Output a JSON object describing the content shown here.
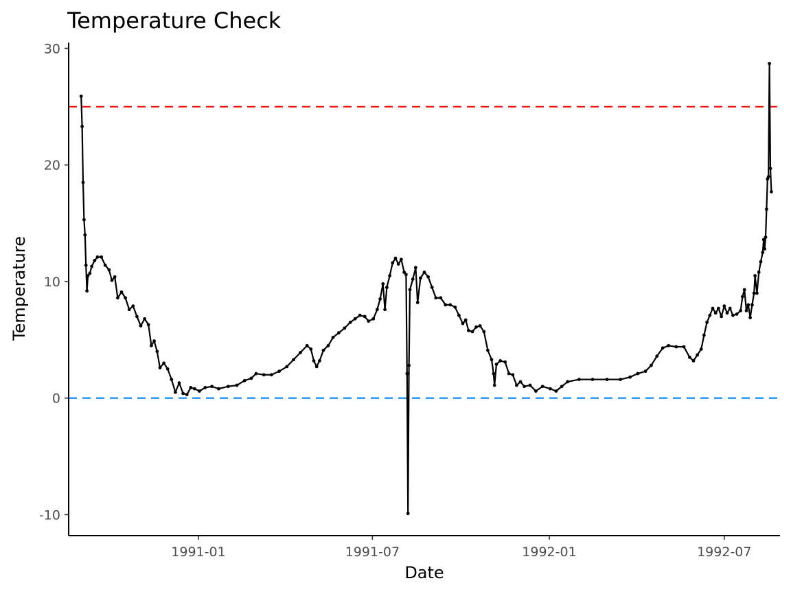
{
  "chart_data": {
    "type": "line",
    "title": "Temperature Check",
    "xlabel": "Date",
    "ylabel": "Temperature",
    "xlim": [
      "1990-08-19",
      "1992-08-28"
    ],
    "ylim": [
      -11.8,
      30.5
    ],
    "x_ticks": [
      "1991-01-01",
      "1991-07-01",
      "1992-01-01",
      "1992-07-01"
    ],
    "x_tick_labels": [
      "1991-01",
      "1991-07",
      "1992-01",
      "1992-07"
    ],
    "y_ticks": [
      -10,
      0,
      10,
      20,
      30
    ],
    "y_tick_labels": [
      "-10",
      "0",
      "10",
      "20",
      "30"
    ],
    "grid": false,
    "reference_lines": [
      {
        "y": 25,
        "color": "#ff0000",
        "style": "dashed"
      },
      {
        "y": 0,
        "color": "#1e90ff",
        "style": "dashed"
      }
    ],
    "series": [
      {
        "color": "#000000",
        "marker": "point",
        "points": [
          [
            "1990-09-01",
            25.9
          ],
          [
            "1990-09-02",
            23.3
          ],
          [
            "1990-09-03",
            18.5
          ],
          [
            "1990-09-04",
            15.3
          ],
          [
            "1990-09-05",
            14.0
          ],
          [
            "1990-09-06",
            11.4
          ],
          [
            "1990-09-07",
            9.2
          ],
          [
            "1990-09-08",
            10.5
          ],
          [
            "1990-09-10",
            10.7
          ],
          [
            "1990-09-12",
            11.3
          ],
          [
            "1990-09-15",
            11.8
          ],
          [
            "1990-09-18",
            12.1
          ],
          [
            "1990-09-22",
            12.1
          ],
          [
            "1990-09-26",
            11.4
          ],
          [
            "1990-09-30",
            11.0
          ],
          [
            "1990-10-03",
            10.1
          ],
          [
            "1990-10-06",
            10.4
          ],
          [
            "1990-10-09",
            8.6
          ],
          [
            "1990-10-13",
            9.1
          ],
          [
            "1990-10-17",
            8.6
          ],
          [
            "1990-10-21",
            7.6
          ],
          [
            "1990-10-25",
            7.9
          ],
          [
            "1990-10-29",
            7.0
          ],
          [
            "1990-11-02",
            6.2
          ],
          [
            "1990-11-06",
            6.8
          ],
          [
            "1990-11-10",
            6.3
          ],
          [
            "1990-11-13",
            4.5
          ],
          [
            "1990-11-16",
            4.9
          ],
          [
            "1990-11-19",
            4.0
          ],
          [
            "1990-11-22",
            2.6
          ],
          [
            "1990-11-26",
            3.0
          ],
          [
            "1990-11-30",
            2.5
          ],
          [
            "1990-12-04",
            1.6
          ],
          [
            "1990-12-08",
            0.5
          ],
          [
            "1990-12-12",
            1.3
          ],
          [
            "1990-12-16",
            0.4
          ],
          [
            "1990-12-20",
            0.3
          ],
          [
            "1990-12-24",
            0.9
          ],
          [
            "1990-12-28",
            0.8
          ],
          [
            "1991-01-02",
            0.6
          ],
          [
            "1991-01-08",
            0.9
          ],
          [
            "1991-01-15",
            1.0
          ],
          [
            "1991-01-22",
            0.8
          ],
          [
            "1991-02-01",
            1.0
          ],
          [
            "1991-02-10",
            1.1
          ],
          [
            "1991-02-18",
            1.5
          ],
          [
            "1991-02-25",
            1.7
          ],
          [
            "1991-03-02",
            2.1
          ],
          [
            "1991-03-10",
            2.0
          ],
          [
            "1991-03-18",
            2.0
          ],
          [
            "1991-03-26",
            2.3
          ],
          [
            "1991-04-03",
            2.7
          ],
          [
            "1991-04-10",
            3.3
          ],
          [
            "1991-04-17",
            3.9
          ],
          [
            "1991-04-24",
            4.5
          ],
          [
            "1991-04-28",
            4.2
          ],
          [
            "1991-05-01",
            3.2
          ],
          [
            "1991-05-04",
            2.7
          ],
          [
            "1991-05-07",
            3.2
          ],
          [
            "1991-05-11",
            4.1
          ],
          [
            "1991-05-16",
            4.5
          ],
          [
            "1991-05-21",
            5.2
          ],
          [
            "1991-05-27",
            5.6
          ],
          [
            "1991-06-02",
            6.0
          ],
          [
            "1991-06-08",
            6.5
          ],
          [
            "1991-06-13",
            6.8
          ],
          [
            "1991-06-18",
            7.1
          ],
          [
            "1991-06-23",
            7.0
          ],
          [
            "1991-06-27",
            6.6
          ],
          [
            "1991-07-02",
            6.8
          ],
          [
            "1991-07-06",
            7.6
          ],
          [
            "1991-07-09",
            8.5
          ],
          [
            "1991-07-12",
            9.8
          ],
          [
            "1991-07-14",
            7.6
          ],
          [
            "1991-07-16",
            9.5
          ],
          [
            "1991-07-19",
            10.5
          ],
          [
            "1991-07-22",
            11.6
          ],
          [
            "1991-07-25",
            12.0
          ],
          [
            "1991-07-28",
            11.5
          ],
          [
            "1991-07-31",
            11.9
          ],
          [
            "1991-08-03",
            10.8
          ],
          [
            "1991-08-05",
            10.6
          ],
          [
            "1991-08-06",
            2.1
          ],
          [
            "1991-08-07",
            -9.9
          ],
          [
            "1991-08-08",
            2.8
          ],
          [
            "1991-08-09",
            9.3
          ],
          [
            "1991-08-12",
            10.2
          ],
          [
            "1991-08-15",
            11.2
          ],
          [
            "1991-08-17",
            8.2
          ],
          [
            "1991-08-20",
            10.3
          ],
          [
            "1991-08-24",
            10.8
          ],
          [
            "1991-08-28",
            10.4
          ],
          [
            "1991-09-01",
            9.5
          ],
          [
            "1991-09-05",
            8.6
          ],
          [
            "1991-09-10",
            8.6
          ],
          [
            "1991-09-15",
            8.0
          ],
          [
            "1991-09-20",
            8.0
          ],
          [
            "1991-09-25",
            7.8
          ],
          [
            "1991-09-29",
            7.1
          ],
          [
            "1991-10-03",
            6.4
          ],
          [
            "1991-10-06",
            6.7
          ],
          [
            "1991-10-09",
            5.8
          ],
          [
            "1991-10-13",
            5.7
          ],
          [
            "1991-10-17",
            6.1
          ],
          [
            "1991-10-21",
            6.2
          ],
          [
            "1991-10-25",
            5.7
          ],
          [
            "1991-10-29",
            4.1
          ],
          [
            "1991-11-02",
            3.3
          ],
          [
            "1991-11-04",
            2.1
          ],
          [
            "1991-11-05",
            1.1
          ],
          [
            "1991-11-07",
            2.9
          ],
          [
            "1991-11-11",
            3.2
          ],
          [
            "1991-11-16",
            3.1
          ],
          [
            "1991-11-20",
            2.1
          ],
          [
            "1991-11-24",
            2.0
          ],
          [
            "1991-11-28",
            1.1
          ],
          [
            "1991-12-02",
            1.4
          ],
          [
            "1991-12-06",
            1.0
          ],
          [
            "1991-12-12",
            1.1
          ],
          [
            "1991-12-18",
            0.6
          ],
          [
            "1991-12-25",
            1.0
          ],
          [
            "1992-01-02",
            0.8
          ],
          [
            "1992-01-08",
            0.6
          ],
          [
            "1992-01-14",
            1.0
          ],
          [
            "1992-01-20",
            1.4
          ],
          [
            "1992-02-01",
            1.6
          ],
          [
            "1992-02-15",
            1.6
          ],
          [
            "1992-03-01",
            1.6
          ],
          [
            "1992-03-15",
            1.6
          ],
          [
            "1992-03-25",
            1.8
          ],
          [
            "1992-04-02",
            2.1
          ],
          [
            "1992-04-10",
            2.3
          ],
          [
            "1992-04-16",
            2.8
          ],
          [
            "1992-04-22",
            3.6
          ],
          [
            "1992-04-28",
            4.3
          ],
          [
            "1992-05-04",
            4.5
          ],
          [
            "1992-05-12",
            4.4
          ],
          [
            "1992-05-20",
            4.4
          ],
          [
            "1992-05-26",
            3.5
          ],
          [
            "1992-05-30",
            3.2
          ],
          [
            "1992-06-03",
            3.7
          ],
          [
            "1992-06-07",
            4.2
          ],
          [
            "1992-06-10",
            5.4
          ],
          [
            "1992-06-13",
            6.5
          ],
          [
            "1992-06-16",
            7.1
          ],
          [
            "1992-06-19",
            7.7
          ],
          [
            "1992-06-22",
            7.3
          ],
          [
            "1992-06-25",
            7.7
          ],
          [
            "1992-06-28",
            7.0
          ],
          [
            "1992-07-01",
            7.9
          ],
          [
            "1992-07-04",
            7.3
          ],
          [
            "1992-07-07",
            7.7
          ],
          [
            "1992-07-10",
            7.1
          ],
          [
            "1992-07-14",
            7.2
          ],
          [
            "1992-07-18",
            7.5
          ],
          [
            "1992-07-20",
            8.7
          ],
          [
            "1992-07-22",
            9.3
          ],
          [
            "1992-07-24",
            7.5
          ],
          [
            "1992-07-26",
            8.0
          ],
          [
            "1992-07-28",
            6.9
          ],
          [
            "1992-07-30",
            8.0
          ],
          [
            "1992-08-01",
            9.0
          ],
          [
            "1992-08-02",
            10.5
          ],
          [
            "1992-08-04",
            9.0
          ],
          [
            "1992-08-06",
            10.8
          ],
          [
            "1992-08-08",
            11.7
          ],
          [
            "1992-08-10",
            12.5
          ],
          [
            "1992-08-11",
            13.6
          ],
          [
            "1992-08-12",
            12.8
          ],
          [
            "1992-08-13",
            13.8
          ],
          [
            "1992-08-14",
            16.2
          ],
          [
            "1992-08-15",
            18.8
          ],
          [
            "1992-08-16",
            19.0
          ],
          [
            "1992-08-17",
            28.7
          ],
          [
            "1992-08-18",
            19.7
          ],
          [
            "1992-08-19",
            17.7
          ]
        ]
      }
    ]
  }
}
